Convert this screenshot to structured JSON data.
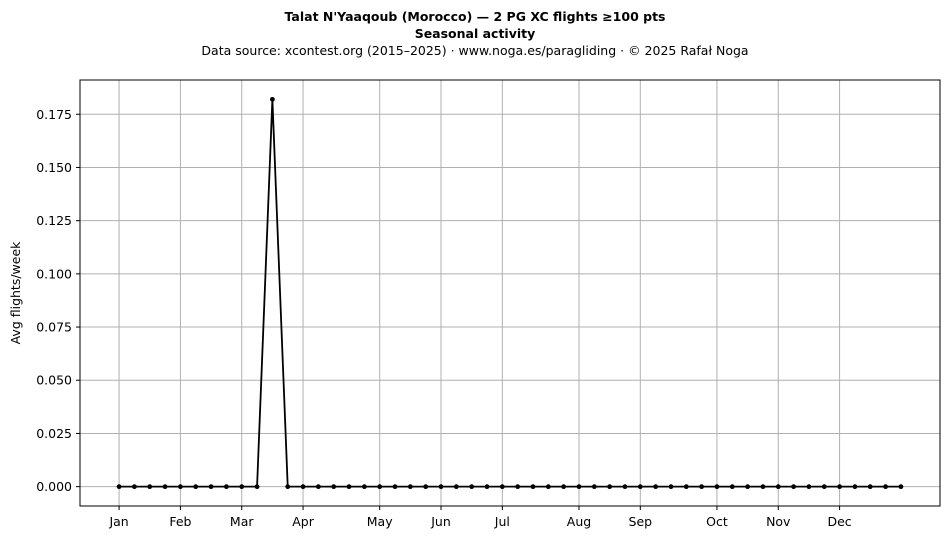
{
  "header": {
    "title": "Talat N'Yaaqoub (Morocco)  —  2 PG XC flights ≥100 pts",
    "subtitle": "Seasonal activity",
    "source": "Data source: xcontest.org (2015–2025)  ·  www.noga.es/paragliding  ·  © 2025 Rafał Noga"
  },
  "chart_data": {
    "type": "line",
    "title": "Talat N'Yaaqoub (Morocco)  —  2 PG XC flights ≥100 pts",
    "subtitle": "Seasonal activity",
    "xlabel": "",
    "ylabel": "Avg flights/week",
    "x_unit": "week of year",
    "x": [
      1,
      2,
      3,
      4,
      5,
      6,
      7,
      8,
      9,
      10,
      11,
      12,
      13,
      14,
      15,
      16,
      17,
      18,
      19,
      20,
      21,
      22,
      23,
      24,
      25,
      26,
      27,
      28,
      29,
      30,
      31,
      32,
      33,
      34,
      35,
      36,
      37,
      38,
      39,
      40,
      41,
      42,
      43,
      44,
      45,
      46,
      47,
      48,
      49,
      50,
      51,
      52
    ],
    "values": [
      0,
      0,
      0,
      0,
      0,
      0,
      0,
      0,
      0,
      0,
      0.182,
      0,
      0,
      0,
      0,
      0,
      0,
      0,
      0,
      0,
      0,
      0,
      0,
      0,
      0,
      0,
      0,
      0,
      0,
      0,
      0,
      0,
      0,
      0,
      0,
      0,
      0,
      0,
      0,
      0,
      0,
      0,
      0,
      0,
      0,
      0,
      0,
      0,
      0,
      0,
      0,
      0
    ],
    "xticks": [
      {
        "label": "Jan",
        "week": 1
      },
      {
        "label": "Feb",
        "week": 5
      },
      {
        "label": "Mar",
        "week": 9
      },
      {
        "label": "Apr",
        "week": 13
      },
      {
        "label": "May",
        "week": 18
      },
      {
        "label": "Jun",
        "week": 22
      },
      {
        "label": "Jul",
        "week": 26
      },
      {
        "label": "Aug",
        "week": 31
      },
      {
        "label": "Sep",
        "week": 35
      },
      {
        "label": "Oct",
        "week": 40
      },
      {
        "label": "Nov",
        "week": 44
      },
      {
        "label": "Dec",
        "week": 48
      }
    ],
    "yticks": [
      "0.000",
      "0.025",
      "0.050",
      "0.075",
      "0.100",
      "0.125",
      "0.150",
      "0.175"
    ],
    "ylim": [
      -0.0091,
      0.1911
    ],
    "xlim": [
      -1.55,
      54.55
    ],
    "grid": true,
    "legend": "none",
    "line_color": "#000000",
    "grid_color": "#b0b0b0"
  }
}
